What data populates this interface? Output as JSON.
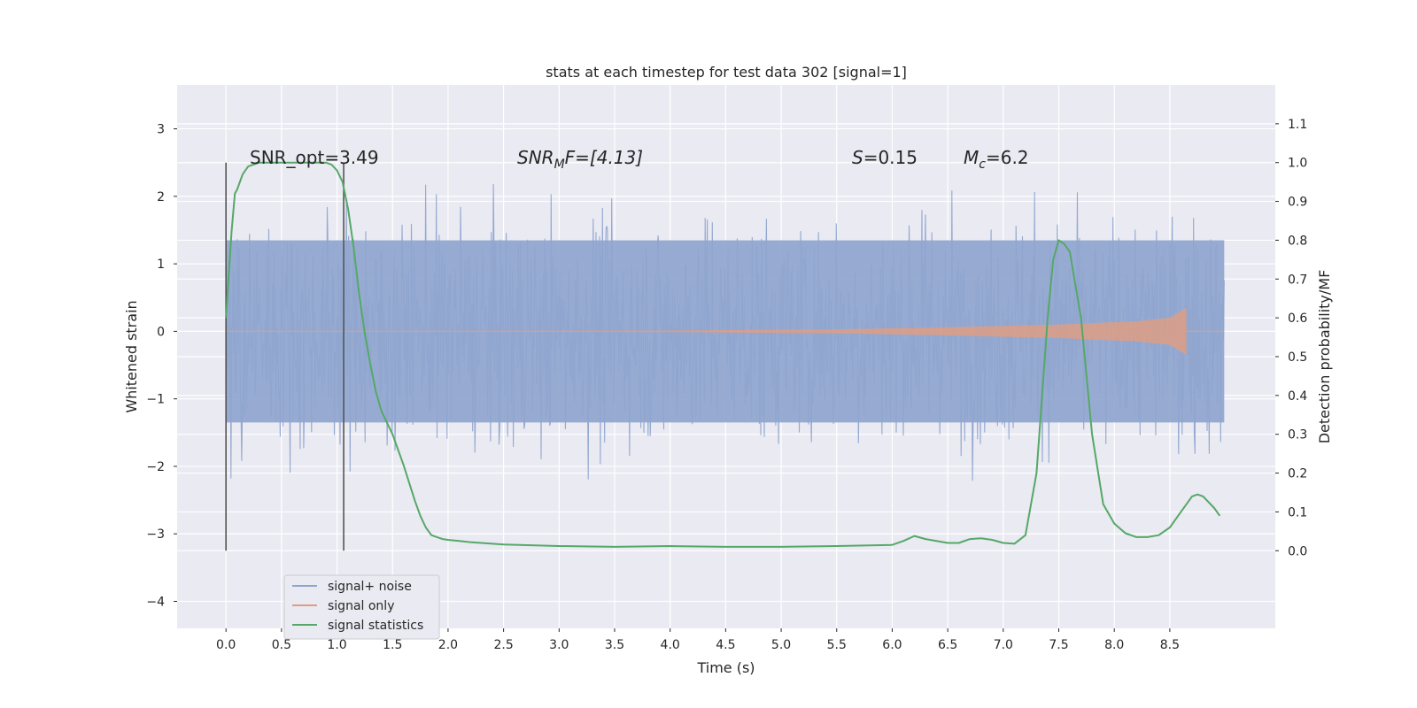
{
  "chart_data": {
    "type": "line",
    "title": "stats at each timestep for test data 302 [signal=1]",
    "xlabel": "Time (s)",
    "ylabel_left": "Whitened strain",
    "ylabel_right": "Detection probability/MF",
    "xlim": [
      -0.44,
      9.45
    ],
    "ylim_left": [
      -4.4,
      3.65
    ],
    "ylim_right": [
      -0.2,
      1.2
    ],
    "x_ticks": [
      "0.0",
      "0.5",
      "1.0",
      "1.5",
      "2.0",
      "2.5",
      "3.0",
      "3.5",
      "4.0",
      "4.5",
      "5.0",
      "5.5",
      "6.0",
      "6.5",
      "7.0",
      "7.5",
      "8.0",
      "8.5"
    ],
    "y_ticks_left": [
      "−4",
      "−3",
      "−2",
      "−1",
      "0",
      "1",
      "2",
      "3"
    ],
    "y_ticks_right": [
      "0.0",
      "0.1",
      "0.2",
      "0.3",
      "0.4",
      "0.5",
      "0.6",
      "0.7",
      "0.8",
      "0.9",
      "1.0",
      "1.1"
    ],
    "grid": true,
    "legend_placement": "lower-left",
    "annotations": {
      "snr_opt": "SNR_opt=3.49",
      "snr_mf_main": "SNR",
      "snr_mf_sub": "M",
      "snr_mf_rest": "F=[4.13]",
      "s_main": "S",
      "s_rest": "=0.15",
      "mc_main": "M",
      "mc_sub": "c",
      "mc_rest": "=6.2"
    },
    "vertical_markers": [
      0.0,
      1.06
    ],
    "series": [
      {
        "name": "signal+ noise",
        "color": "#8fa5cf",
        "axis": "left",
        "x_range": [
          0.0,
          8.99
        ],
        "envelope_top": 1.35,
        "envelope_bottom": -1.35
      },
      {
        "name": "signal only",
        "color": "#dd9d85",
        "axis": "left",
        "x_range": [
          0.0,
          8.65
        ],
        "amplitude_points": [
          [
            0.0,
            0.0
          ],
          [
            4.0,
            0.01
          ],
          [
            5.5,
            0.03
          ],
          [
            6.5,
            0.06
          ],
          [
            7.5,
            0.1
          ],
          [
            8.2,
            0.15
          ],
          [
            8.5,
            0.2
          ],
          [
            8.65,
            0.35
          ]
        ]
      },
      {
        "name": "signal statistics",
        "color": "#55a868",
        "axis": "right",
        "x": [
          0.0,
          0.05,
          0.08,
          0.1,
          0.15,
          0.2,
          0.3,
          0.4,
          0.5,
          0.6,
          0.7,
          0.8,
          0.9,
          0.95,
          1.0,
          1.05,
          1.1,
          1.15,
          1.2,
          1.25,
          1.3,
          1.35,
          1.4,
          1.5,
          1.6,
          1.7,
          1.75,
          1.8,
          1.85,
          1.9,
          1.95,
          2.0,
          2.1,
          2.2,
          2.5,
          3.0,
          3.5,
          4.0,
          4.5,
          5.0,
          5.5,
          6.0,
          6.1,
          6.2,
          6.3,
          6.5,
          6.6,
          6.7,
          6.8,
          6.9,
          7.0,
          7.1,
          7.2,
          7.3,
          7.4,
          7.45,
          7.5,
          7.55,
          7.6,
          7.7,
          7.8,
          7.9,
          8.0,
          8.1,
          8.2,
          8.3,
          8.4,
          8.5,
          8.6,
          8.7,
          8.75,
          8.8,
          8.9,
          8.95
        ],
        "values": [
          0.6,
          0.82,
          0.92,
          0.93,
          0.97,
          0.99,
          1.0,
          1.0,
          1.0,
          1.0,
          1.0,
          1.0,
          1.0,
          0.995,
          0.98,
          0.95,
          0.88,
          0.78,
          0.66,
          0.56,
          0.48,
          0.41,
          0.36,
          0.3,
          0.22,
          0.13,
          0.09,
          0.06,
          0.04,
          0.035,
          0.03,
          0.028,
          0.025,
          0.022,
          0.016,
          0.012,
          0.01,
          0.012,
          0.01,
          0.01,
          0.012,
          0.015,
          0.025,
          0.038,
          0.03,
          0.02,
          0.02,
          0.03,
          0.032,
          0.028,
          0.02,
          0.018,
          0.04,
          0.2,
          0.6,
          0.75,
          0.8,
          0.79,
          0.77,
          0.6,
          0.3,
          0.12,
          0.07,
          0.045,
          0.035,
          0.035,
          0.04,
          0.06,
          0.1,
          0.14,
          0.145,
          0.14,
          0.11,
          0.09
        ]
      }
    ]
  }
}
